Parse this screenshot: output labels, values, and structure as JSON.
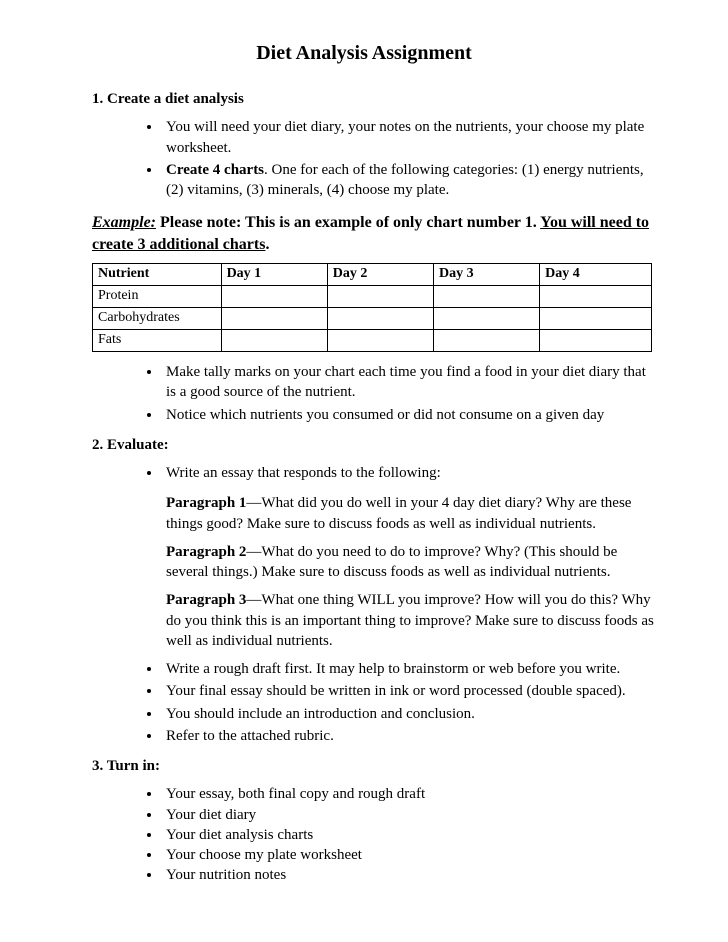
{
  "title": "Diet Analysis Assignment",
  "section1": {
    "heading": "1.   Create a diet analysis",
    "bullets": [
      "You will need your diet diary, your notes on the nutrients, your choose my plate worksheet.",
      "__BOLD__Create 4 charts__END__.  One for each of the following categories:  (1) energy nutrients, (2) vitamins, (3) minerals, (4) choose my plate."
    ]
  },
  "example": {
    "label": "Example:",
    "text1": "  Please note:  This is an example of only chart number 1.  ",
    "text2": "You will need to create 3 additional charts",
    "tail": "."
  },
  "table": {
    "columns": [
      "Nutrient",
      "Day 1",
      "Day 2",
      "Day 3",
      "Day 4"
    ],
    "rows": [
      [
        "Protein",
        "",
        "",
        "",
        ""
      ],
      [
        "Carbohydrates",
        "",
        "",
        "",
        ""
      ],
      [
        "Fats",
        "",
        "",
        "",
        ""
      ]
    ]
  },
  "post_table_bullets": [
    "Make tally marks on your chart each time you find a food in your diet diary that is a good source of the nutrient.",
    "Notice which nutrients you consumed or did not consume on a given day"
  ],
  "section2": {
    "heading": "2.   Evaluate:",
    "intro_bullet": "Write an essay that responds to the following:",
    "paragraphs": [
      {
        "lead": "Paragraph 1",
        "body": "—What did you do well in your 4 day diet diary?  Why are these things good?  Make sure to discuss foods as well as individual nutrients."
      },
      {
        "lead": "Paragraph 2",
        "body": "—What do you need to do to improve?  Why?  (This should be several things.)  Make sure to discuss foods as well as individual nutrients."
      },
      {
        "lead": "Paragraph 3",
        "body": "—What one thing WILL you improve?  How will you do this?  Why do you think this is an important thing to improve?  Make sure to discuss foods as well as individual nutrients."
      }
    ],
    "more_bullets": [
      "Write a rough draft first.  It may help to brainstorm or web before you write.",
      "Your final essay should be written in ink or word processed (double spaced).",
      "You should include an introduction and conclusion.",
      "Refer to the attached rubric."
    ]
  },
  "section3": {
    "heading": "3.   Turn in:",
    "bullets": [
      "Your essay, both final copy and rough draft",
      "Your diet diary",
      "Your diet analysis charts",
      "Your choose my plate worksheet",
      "Your nutrition notes"
    ]
  }
}
